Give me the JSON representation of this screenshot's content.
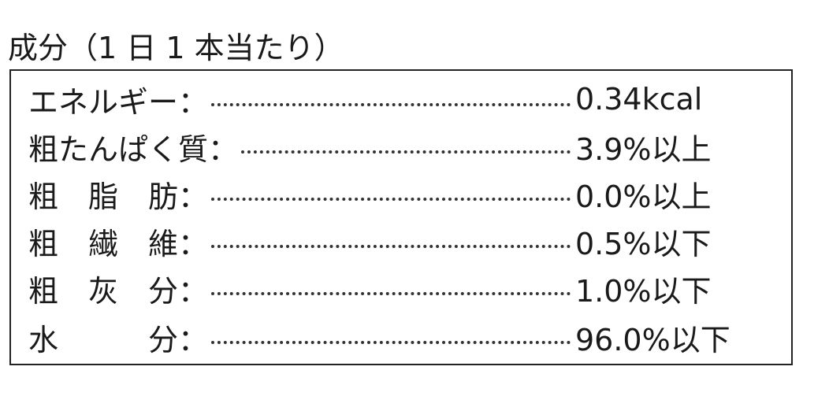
{
  "title": "成分（1 日 1 本当たり）",
  "rows": [
    {
      "label": "エネルギー：",
      "value": "0.34kcal"
    },
    {
      "label": "粗たんぱく質：",
      "value": "3.9%以上"
    },
    {
      "label": "粗　脂　肪：",
      "value": "0.0%以上"
    },
    {
      "label": "粗　繊　維：",
      "value": "0.5%以下"
    },
    {
      "label": "粗　灰　分：",
      "value": "1.0%以下"
    },
    {
      "label": "水　　　分：",
      "value": "96.0%以下"
    }
  ]
}
